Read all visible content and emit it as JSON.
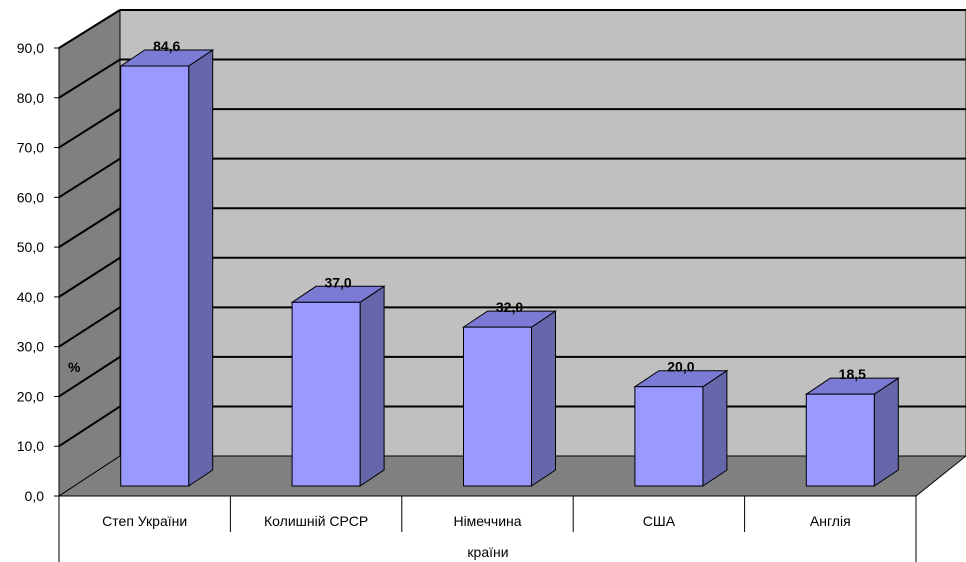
{
  "chart_data": {
    "type": "bar",
    "style": "3d-column",
    "categories": [
      "Степ України",
      "Колишній СРСР",
      "Німеччина",
      "США",
      "Англія"
    ],
    "values": [
      84.6,
      37.0,
      32.0,
      20.0,
      18.5
    ],
    "data_labels": [
      "84,6",
      "37,0",
      "32,0",
      "20,0",
      "18,5"
    ],
    "ylim": [
      0,
      90
    ],
    "yticks": [
      "0,0",
      "10,0",
      "20,0",
      "30,0",
      "40,0",
      "50,0",
      "60,0",
      "70,0",
      "80,0",
      "90,0"
    ],
    "ylabel": "%",
    "xlabel": "країни",
    "grid": true,
    "colors": {
      "bar_front": "#9999ff",
      "bar_side": "#6666aa",
      "bar_top": "#7b7bd6",
      "back_wall": "#c0c0c0",
      "side_wall": "#808080",
      "floor": "#808080"
    }
  }
}
